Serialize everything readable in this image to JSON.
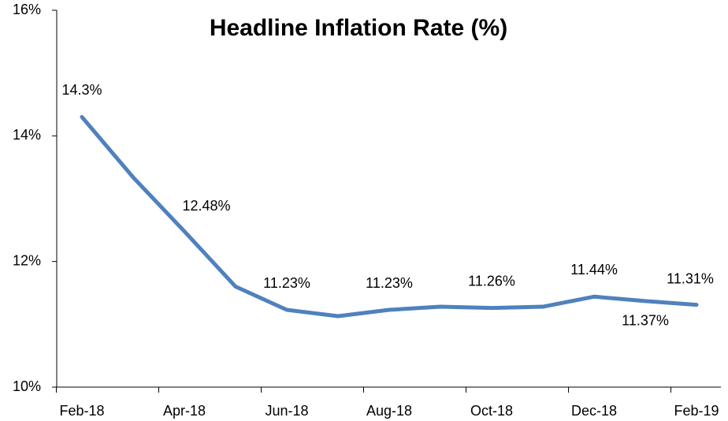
{
  "chart_data": {
    "type": "line",
    "title": "Headline Inflation Rate (%)",
    "categories": [
      "Feb-18",
      null,
      "Apr-18",
      null,
      "Jun-18",
      null,
      "Aug-18",
      null,
      "Oct-18",
      null,
      "Dec-18",
      null,
      "Feb-19"
    ],
    "series": [
      {
        "name": "Headline Inflation Rate",
        "color": "#4f81bd",
        "values": [
          14.3,
          13.34,
          12.48,
          11.6,
          11.23,
          11.13,
          11.23,
          11.28,
          11.26,
          11.28,
          11.44,
          11.37,
          11.31
        ],
        "value_labels": [
          "14.3%",
          null,
          "12.48%",
          null,
          "11.23%",
          null,
          "11.23%",
          null,
          "11.26%",
          null,
          "11.44%",
          "11.37%",
          "11.31%"
        ]
      }
    ],
    "ylim": [
      10,
      16
    ],
    "yticks": [
      {
        "value": 10,
        "label": "10%"
      },
      {
        "value": 12,
        "label": "12%"
      },
      {
        "value": 14,
        "label": "14%"
      },
      {
        "value": 16,
        "label": "16%"
      }
    ],
    "grid": false
  }
}
